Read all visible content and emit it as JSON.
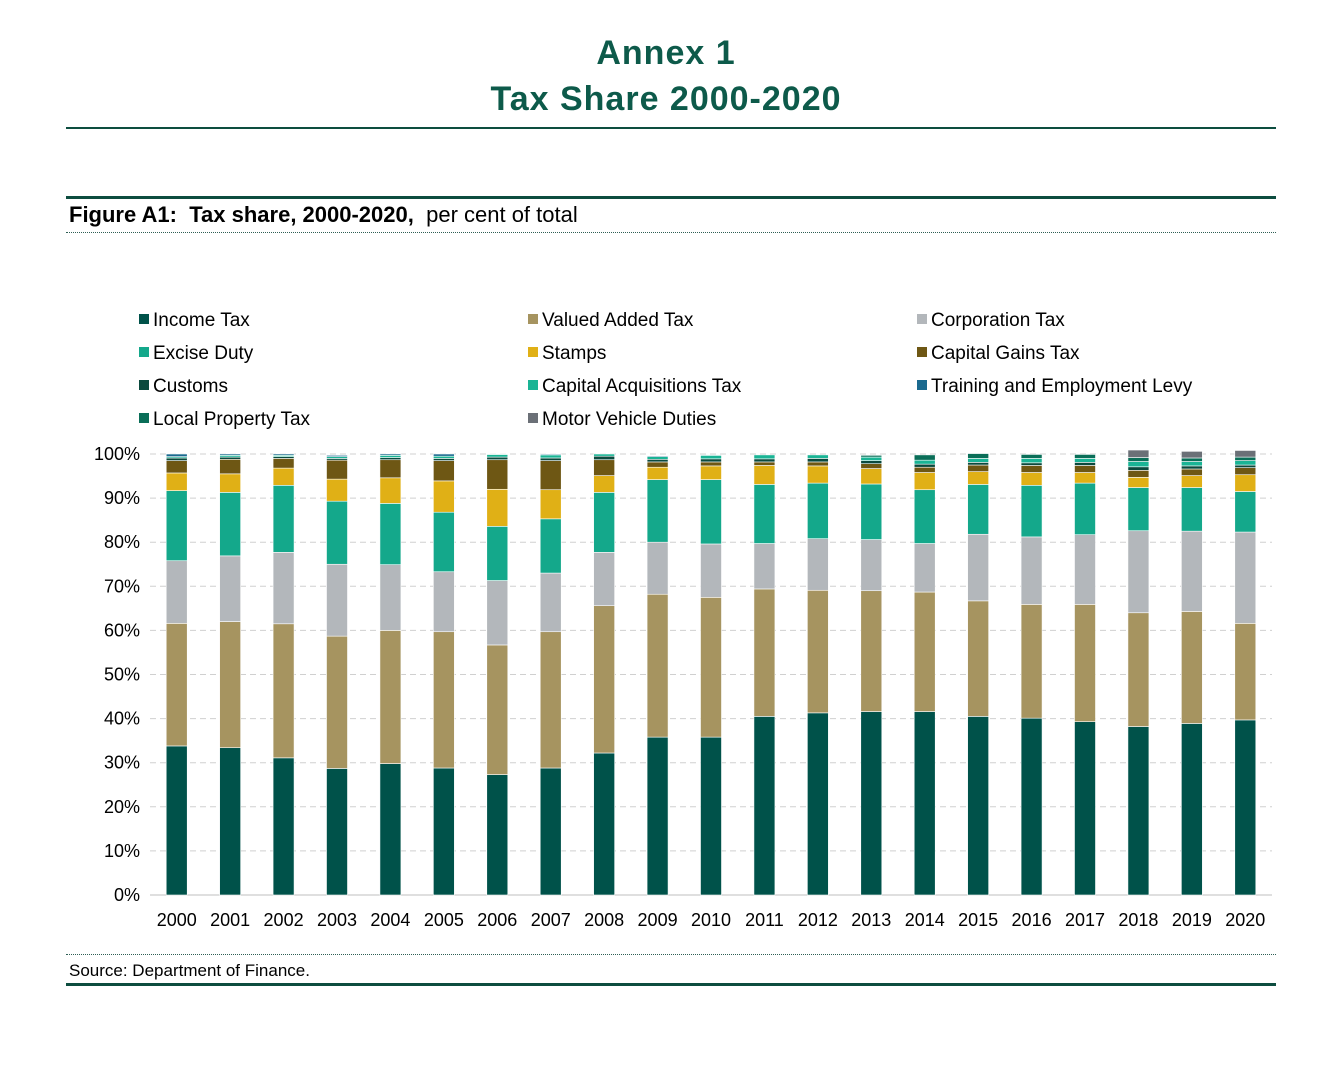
{
  "header": {
    "annex": "Annex 1",
    "title": "Tax Share 2000-2020"
  },
  "figure": {
    "label": "Figure A1:",
    "title": "Tax share, 2000-2020,",
    "subtitle": "per cent of total"
  },
  "source": "Source: Department of Finance.",
  "chart_data": {
    "type": "bar",
    "stacked": true,
    "categories": [
      "2000",
      "2001",
      "2002",
      "2003",
      "2004",
      "2005",
      "2006",
      "2007",
      "2008",
      "2009",
      "2010",
      "2011",
      "2012",
      "2013",
      "2014",
      "2015",
      "2016",
      "2017",
      "2018",
      "2019",
      "2020"
    ],
    "ylim": [
      0,
      100
    ],
    "yticks": [
      "0%",
      "10%",
      "20%",
      "30%",
      "40%",
      "50%",
      "60%",
      "70%",
      "80%",
      "90%",
      "100%"
    ],
    "grid": true,
    "legend_position": "top",
    "series": [
      {
        "name": "Income Tax",
        "color": "#00524a",
        "values": [
          33.8,
          33.4,
          31.1,
          28.7,
          29.8,
          28.8,
          27.3,
          28.8,
          32.2,
          35.8,
          35.8,
          40.5,
          41.3,
          41.6,
          41.6,
          40.5,
          40.1,
          39.3,
          38.2,
          38.9,
          39.7
        ]
      },
      {
        "name": "Valued Added Tax",
        "color": "#a69460",
        "values": [
          27.8,
          28.6,
          30.4,
          30.0,
          30.2,
          30.9,
          29.4,
          30.9,
          33.4,
          32.4,
          31.7,
          28.9,
          27.8,
          27.4,
          27.1,
          26.2,
          25.8,
          26.6,
          25.8,
          25.4,
          21.9
        ]
      },
      {
        "name": "Corporation Tax",
        "color": "#b3b7bb",
        "values": [
          14.2,
          14.9,
          16.2,
          16.3,
          14.9,
          13.6,
          14.6,
          13.3,
          12.1,
          11.8,
          12.1,
          10.3,
          11.7,
          11.6,
          11.0,
          15.1,
          15.3,
          15.8,
          18.6,
          18.2,
          20.7
        ]
      },
      {
        "name": "Excise Duty",
        "color": "#14a88b",
        "values": [
          15.9,
          14.4,
          15.2,
          14.3,
          13.9,
          13.5,
          12.3,
          12.3,
          13.6,
          14.2,
          14.6,
          13.4,
          12.6,
          12.6,
          12.2,
          11.3,
          11.7,
          11.7,
          9.8,
          9.9,
          9.2
        ]
      },
      {
        "name": "Stamps",
        "color": "#e0b016",
        "values": [
          4.0,
          4.2,
          3.9,
          5.0,
          5.8,
          7.1,
          8.4,
          6.6,
          3.8,
          2.8,
          3.1,
          4.3,
          3.9,
          3.5,
          3.9,
          2.9,
          2.9,
          2.4,
          2.3,
          2.7,
          3.8
        ]
      },
      {
        "name": "Capital Gains Tax",
        "color": "#6e5714",
        "values": [
          2.8,
          3.3,
          2.2,
          4.3,
          4.1,
          4.6,
          6.7,
          6.6,
          3.6,
          1.2,
          0.9,
          0.8,
          0.9,
          1.1,
          1.2,
          1.5,
          1.6,
          1.6,
          1.6,
          1.5,
          1.6
        ]
      },
      {
        "name": "Customs",
        "color": "#0b4a3e",
        "values": [
          0.6,
          0.5,
          0.4,
          0.4,
          0.5,
          0.5,
          0.6,
          0.6,
          0.8,
          0.6,
          0.7,
          0.7,
          0.8,
          0.7,
          0.7,
          0.6,
          0.6,
          0.7,
          0.8,
          0.7,
          0.6
        ]
      },
      {
        "name": "Capital Acquisitions Tax",
        "color": "#1ab495",
        "values": [
          0.3,
          0.4,
          0.3,
          0.4,
          0.5,
          0.5,
          0.6,
          0.7,
          0.5,
          0.6,
          0.8,
          0.9,
          0.8,
          0.8,
          0.9,
          0.9,
          1.0,
          0.9,
          1.2,
          1.0,
          1.0
        ]
      },
      {
        "name": "Training and Employment Levy",
        "color": "#1b6a8f",
        "values": [
          0.6,
          0.3,
          0.3,
          0.3,
          0.3,
          0.5,
          0.1,
          0.2,
          0.0,
          0.2,
          0.1,
          0.0,
          0.0,
          0.0,
          0.0,
          0.0,
          0.0,
          0.0,
          0.0,
          0.0,
          0.0
        ]
      },
      {
        "name": "Local Property Tax",
        "color": "#0a6e58",
        "values": [
          0.0,
          0.0,
          0.0,
          0.0,
          0.0,
          0.0,
          0.0,
          0.0,
          0.0,
          0.0,
          0.0,
          0.0,
          0.0,
          0.4,
          1.2,
          1.1,
          0.9,
          0.9,
          0.9,
          0.8,
          0.8
        ]
      },
      {
        "name": "Motor Vehicle Duties",
        "color": "#6b7077",
        "values": [
          0.0,
          0.0,
          0.0,
          0.0,
          0.0,
          0.0,
          0.0,
          0.0,
          0.0,
          0.0,
          0.0,
          0.0,
          0.0,
          0.0,
          0.0,
          0.0,
          0.0,
          0.0,
          1.7,
          1.5,
          1.5
        ]
      }
    ]
  }
}
